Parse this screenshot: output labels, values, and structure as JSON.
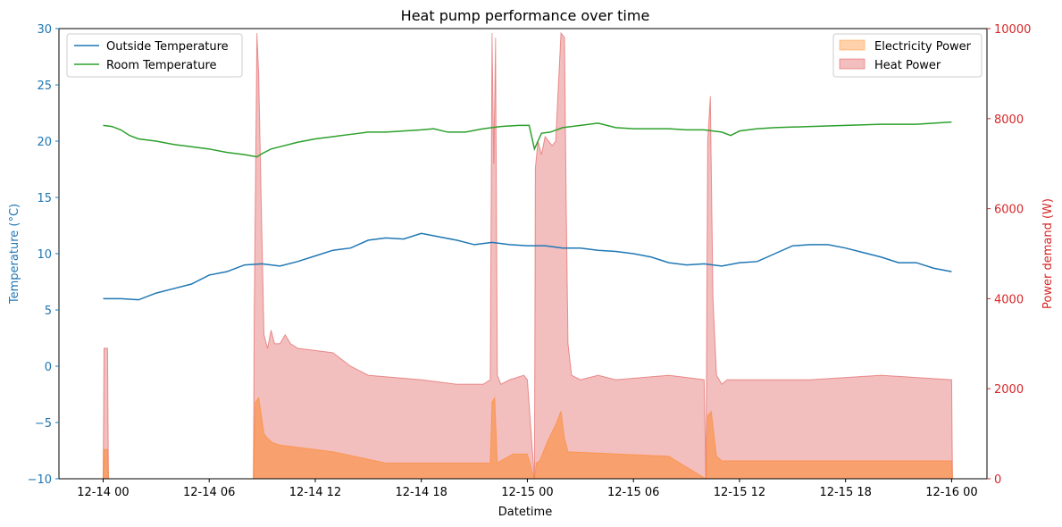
{
  "chart_data": {
    "type": "line",
    "title": "Heat pump performance over time",
    "xlabel": "Datetime",
    "ylabel_left": "Temperature (°C)",
    "ylabel_right": "Power demand (W)",
    "x_ticks": [
      "12-14 00",
      "12-14 06",
      "12-14 12",
      "12-14 18",
      "12-15 00",
      "12-15 06",
      "12-15 12",
      "12-15 18",
      "12-16 00"
    ],
    "x_range_hours": [
      -2.5,
      50
    ],
    "y_left_range": [
      -10,
      30
    ],
    "y_left_ticks": [
      -10,
      -5,
      0,
      5,
      10,
      15,
      20,
      25,
      30
    ],
    "y_right_range": [
      0,
      10000
    ],
    "y_right_ticks": [
      0,
      2000,
      4000,
      6000,
      8000,
      10000
    ],
    "colors": {
      "outside": "#1f77b4",
      "room": "#2ca02c",
      "electricity": "#ff7f0e",
      "heat": "#d62728",
      "left_axis": "#1f77b4",
      "right_axis": "#d62728"
    },
    "legend_left_placement": "top-left",
    "legend_right_placement": "top-right",
    "series": [
      {
        "name": "Outside Temperature",
        "axis": "left",
        "x": [
          0,
          1,
          2,
          3,
          4,
          5,
          6,
          7,
          8,
          9,
          10,
          11,
          12,
          13,
          14,
          15,
          16,
          17,
          18,
          19,
          20,
          21,
          22,
          23,
          24,
          25,
          26,
          27,
          28,
          29,
          30,
          31,
          32,
          33,
          34,
          35,
          36,
          37,
          38,
          39,
          40,
          41,
          42,
          43,
          44,
          45,
          46,
          47,
          48
        ],
        "values": [
          6.0,
          6.0,
          5.9,
          6.5,
          6.9,
          7.3,
          8.1,
          8.4,
          9.0,
          9.1,
          8.9,
          9.3,
          9.8,
          10.3,
          10.5,
          11.2,
          11.4,
          11.3,
          11.8,
          11.5,
          11.2,
          10.8,
          11.0,
          10.8,
          10.7,
          10.7,
          10.5,
          10.5,
          10.3,
          10.2,
          10.0,
          9.7,
          9.2,
          9.0,
          9.1,
          8.9,
          9.2,
          9.3,
          10.0,
          10.7,
          10.8,
          10.8,
          10.5,
          10.1,
          9.7,
          9.2,
          9.2,
          8.7,
          8.4
        ]
      },
      {
        "name": "Room Temperature",
        "axis": "left",
        "x": [
          0,
          0.5,
          1,
          1.5,
          2,
          3,
          4,
          5,
          6,
          7,
          8,
          8.7,
          9,
          9.5,
          10,
          11,
          12,
          13,
          14,
          15,
          16,
          17,
          18,
          18.7,
          19.5,
          20.5,
          21.5,
          22.5,
          23.5,
          24.1,
          24.4,
          24.8,
          25.3,
          26,
          27,
          28,
          29,
          30,
          31,
          32,
          33,
          34,
          35,
          35.5,
          36,
          37,
          38,
          40,
          42,
          44,
          46,
          48
        ],
        "values": [
          21.4,
          21.3,
          21.0,
          20.5,
          20.2,
          20.0,
          19.7,
          19.5,
          19.3,
          19.0,
          18.8,
          18.6,
          18.9,
          19.3,
          19.5,
          19.9,
          20.2,
          20.4,
          20.6,
          20.8,
          20.8,
          20.9,
          21.0,
          21.1,
          20.8,
          20.8,
          21.1,
          21.3,
          21.4,
          21.4,
          19.3,
          20.7,
          20.8,
          21.2,
          21.4,
          21.6,
          21.2,
          21.1,
          21.1,
          21.1,
          21.0,
          21.0,
          20.8,
          20.5,
          20.9,
          21.1,
          21.2,
          21.3,
          21.4,
          21.5,
          21.5,
          21.7
        ]
      },
      {
        "name": "Electricity Power",
        "axis": "right",
        "style": "filled-area",
        "x": [
          -0.1,
          0,
          0.05,
          0.25,
          0.3,
          0.5,
          8.5,
          8.6,
          8.8,
          9.1,
          9.3,
          9.6,
          10.0,
          13.0,
          16.0,
          21.0,
          21.9,
          22.0,
          22.15,
          22.3,
          22.5,
          23.2,
          24.0,
          24.4,
          24.5,
          24.7,
          25.1,
          25.6,
          25.9,
          26.1,
          26.3,
          32.0,
          34.1,
          34.2,
          34.4,
          34.7,
          35.0,
          40.0,
          48.0,
          48.05
        ],
        "values": [
          0,
          0,
          650,
          650,
          0,
          0,
          0,
          1700,
          1800,
          1000,
          900,
          800,
          750,
          600,
          350,
          350,
          350,
          1700,
          1800,
          350,
          400,
          550,
          550,
          0,
          350,
          400,
          800,
          1200,
          1500,
          900,
          600,
          500,
          0,
          1400,
          1500,
          500,
          400,
          400,
          400,
          0
        ]
      },
      {
        "name": "Heat Power",
        "axis": "right",
        "style": "filled-area",
        "x": [
          -0.1,
          0,
          0.05,
          0.25,
          0.3,
          0.5,
          8.5,
          8.55,
          8.7,
          8.8,
          8.95,
          9.1,
          9.3,
          9.5,
          9.7,
          10.0,
          10.3,
          10.6,
          11.0,
          13.0,
          14.0,
          15.0,
          18.0,
          20.0,
          21.5,
          21.9,
          22.0,
          22.1,
          22.2,
          22.3,
          22.5,
          23.0,
          23.8,
          24.0,
          24.4,
          24.45,
          24.6,
          24.8,
          25.0,
          25.4,
          25.6,
          25.9,
          26.1,
          26.2,
          26.3,
          26.5,
          27.0,
          28.0,
          29.0,
          32.0,
          34.0,
          34.1,
          34.2,
          34.35,
          34.5,
          34.7,
          35.0,
          35.3,
          36.0,
          40.0,
          44.0,
          48.0,
          48.05
        ],
        "values": [
          0,
          0,
          2900,
          2900,
          0,
          0,
          0,
          3800,
          9900,
          9000,
          6000,
          3200,
          2900,
          3300,
          3000,
          3000,
          3200,
          3000,
          2900,
          2800,
          2500,
          2300,
          2200,
          2100,
          2100,
          2200,
          9900,
          7000,
          9800,
          2300,
          2100,
          2200,
          2300,
          2200,
          0,
          6900,
          7500,
          7200,
          7600,
          7400,
          7500,
          9900,
          9800,
          6000,
          3000,
          2300,
          2200,
          2300,
          2200,
          2300,
          2200,
          0,
          7500,
          8500,
          4000,
          2300,
          2100,
          2200,
          2200,
          2200,
          2300,
          2200,
          0
        ]
      }
    ]
  }
}
